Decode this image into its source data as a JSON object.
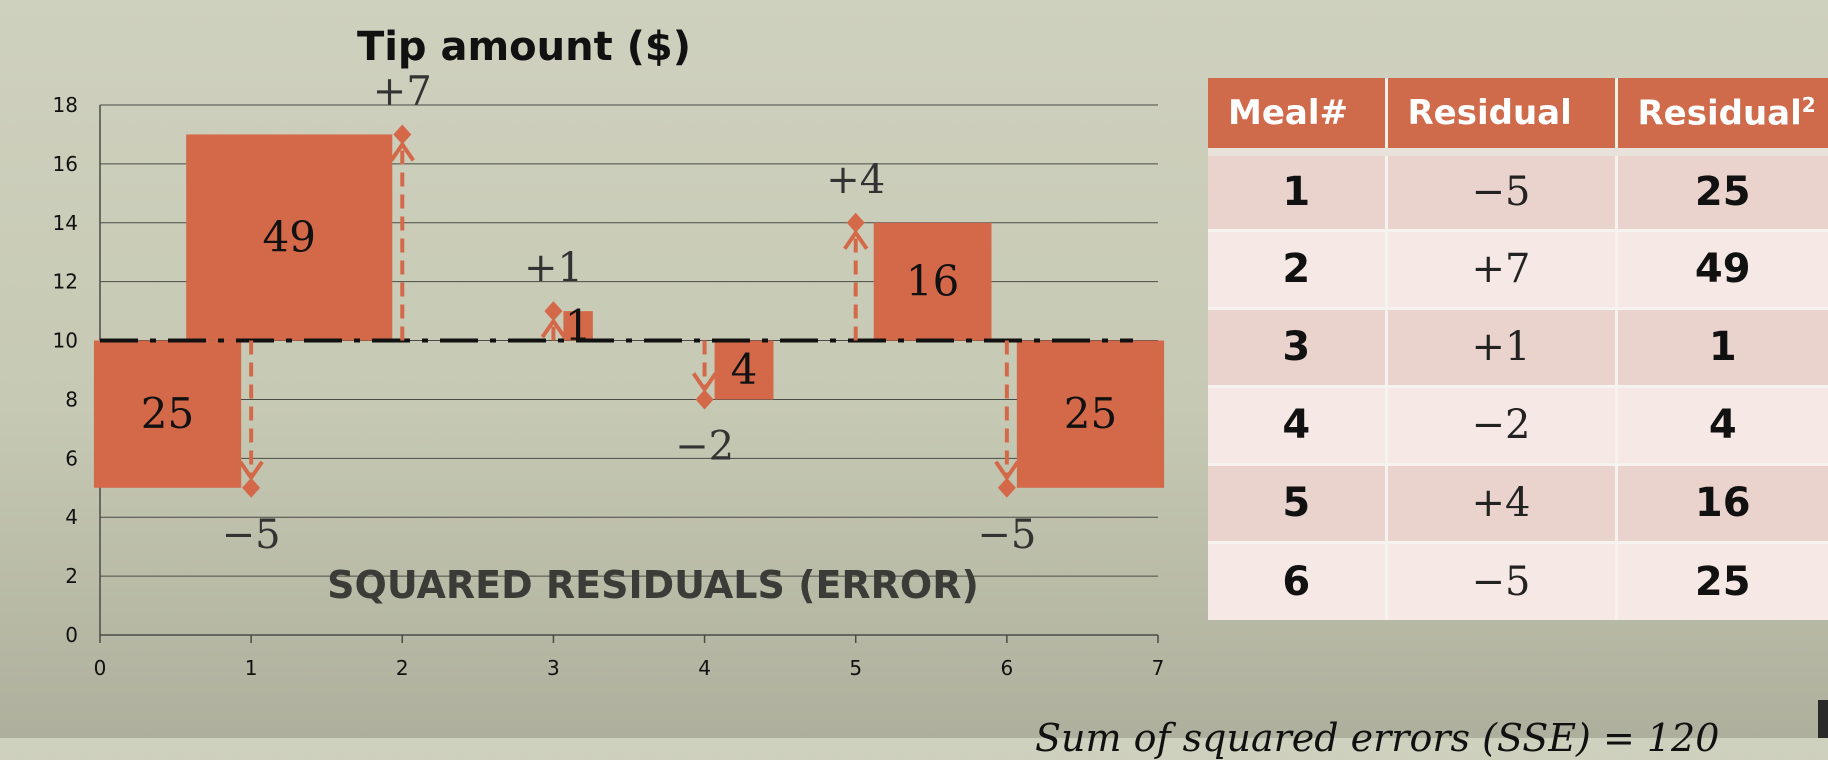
{
  "chart_data": {
    "type": "scatter",
    "title": "Tip amount ($)",
    "watermark": "SQUARED RESIDUALS (ERROR)",
    "xlim": [
      0,
      7
    ],
    "ylim": [
      0,
      18
    ],
    "x_ticks": [
      "0",
      "1",
      "2",
      "3",
      "4",
      "5",
      "6",
      "7"
    ],
    "y_ticks": [
      "0",
      "2",
      "4",
      "6",
      "8",
      "10",
      "12",
      "14",
      "16",
      "18"
    ],
    "grid": true,
    "mean_line": 10,
    "points": [
      {
        "x": 1,
        "y": 5,
        "residual": -5,
        "residual_label": "−5",
        "square_label": "25"
      },
      {
        "x": 2,
        "y": 17,
        "residual": 7,
        "residual_label": "+7",
        "square_label": "49"
      },
      {
        "x": 3,
        "y": 11,
        "residual": 1,
        "residual_label": "+1",
        "square_label": "1"
      },
      {
        "x": 4,
        "y": 8,
        "residual": -2,
        "residual_label": "−2",
        "square_label": "4"
      },
      {
        "x": 5,
        "y": 14,
        "residual": 4,
        "residual_label": "+4",
        "square_label": "16"
      },
      {
        "x": 6,
        "y": 5,
        "residual": -5,
        "residual_label": "−5",
        "square_label": "25"
      }
    ],
    "colors": {
      "square": "#d4694a",
      "arrow": "#d4694a",
      "mean_line": "#111111"
    }
  },
  "table": {
    "headers": [
      "Meal#",
      "Residual",
      "Residual"
    ],
    "header_superscript": "2",
    "rows": [
      {
        "meal": "1",
        "residual": "−5",
        "squared": "25"
      },
      {
        "meal": "2",
        "residual": "+7",
        "squared": "49"
      },
      {
        "meal": "3",
        "residual": "+1",
        "squared": "1"
      },
      {
        "meal": "4",
        "residual": "−2",
        "squared": "4"
      },
      {
        "meal": "5",
        "residual": "+4",
        "squared": "16"
      },
      {
        "meal": "6",
        "residual": "−5",
        "squared": "25"
      }
    ]
  },
  "footer": {
    "sse_text": "Sum of squared errors (SSE) = 120"
  }
}
